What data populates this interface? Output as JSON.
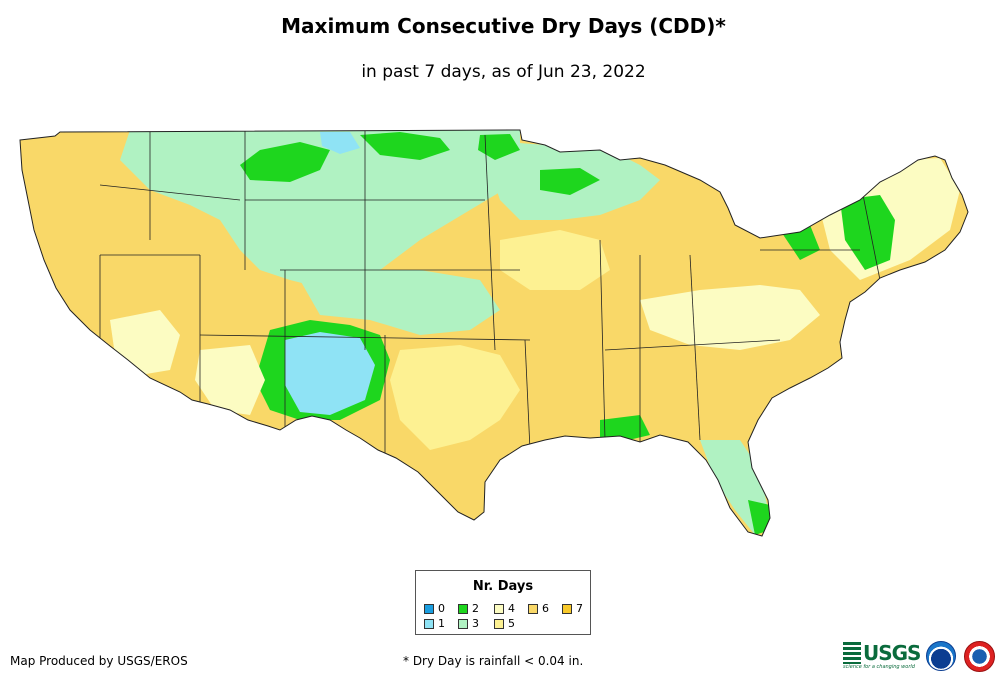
{
  "title": "Maximum Consecutive Dry Days (CDD)*",
  "subtitle": "in past 7 days, as of Jun 23, 2022",
  "legend": {
    "title": "Nr. Days",
    "items": [
      {
        "label": "0",
        "color": "#1a9ee0"
      },
      {
        "label": "1",
        "color": "#8fe3f5"
      },
      {
        "label": "2",
        "color": "#1ed61e"
      },
      {
        "label": "3",
        "color": "#b0f2c2"
      },
      {
        "label": "4",
        "color": "#fcfcc2"
      },
      {
        "label": "5",
        "color": "#fdf192"
      },
      {
        "label": "6",
        "color": "#f9d868"
      },
      {
        "label": "7",
        "color": "#f8c92a"
      }
    ]
  },
  "credit": "Map Produced by USGS/EROS",
  "footnote": "* Dry Day is rainfall < 0.04 in.",
  "logos": {
    "usgs_text": "USGS",
    "usgs_tagline": "science for a changing world",
    "noaa_icon": "noaa-logo-icon",
    "nws_icon": "nws-logo-icon"
  }
}
